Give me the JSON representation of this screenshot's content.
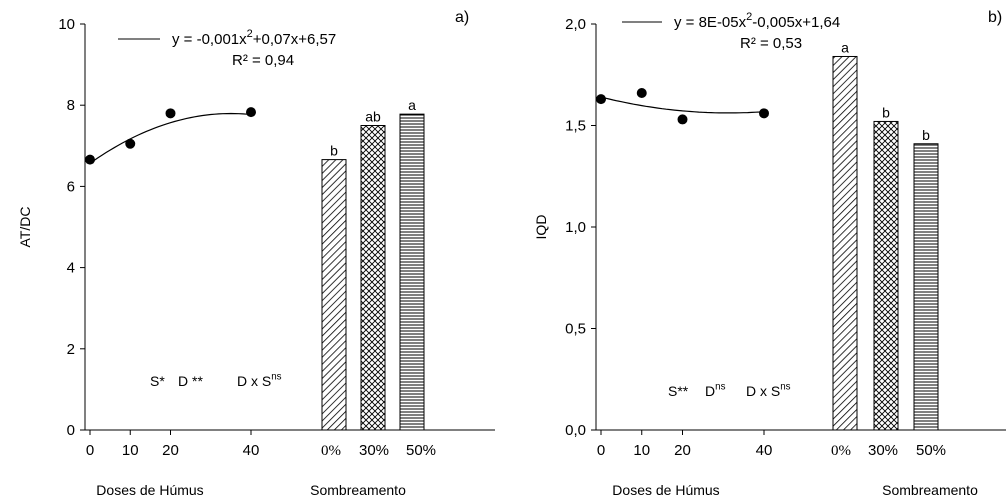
{
  "chart_data": [
    {
      "type": "scatter",
      "panel_label": "a)",
      "ylabel": "AT/DC",
      "ylim": [
        0,
        10
      ],
      "yticks": [
        "0",
        "2",
        "4",
        "6",
        "8",
        "10"
      ],
      "xlabel_doses": "Doses de Húmus",
      "xlabel_shade": "Sombreamento",
      "x_ticks_doses": [
        "0",
        "10",
        "20",
        "40"
      ],
      "points": [
        {
          "x": 0,
          "y": 6.66
        },
        {
          "x": 10,
          "y": 7.05
        },
        {
          "x": 20,
          "y": 7.8
        },
        {
          "x": 40,
          "y": 7.83
        }
      ],
      "fit": {
        "a": -0.001,
        "b": 0.07,
        "c": 6.57
      },
      "equation_main": "y = -0,001x",
      "equation_sup": "2",
      "equation_rest": "+0,07x+6,57",
      "r2": "R² = 0,94",
      "bars": [
        {
          "category": "0%",
          "value": 6.66,
          "letter": "b"
        },
        {
          "category": "30%",
          "value": 7.5,
          "letter": "ab"
        },
        {
          "category": "50%",
          "value": 7.78,
          "letter": "a"
        }
      ],
      "sig": {
        "s_label": "S*",
        "d_label": "D **",
        "dxs_label": "D x S",
        "dxs_sup": "ns"
      }
    },
    {
      "type": "scatter",
      "panel_label": "b)",
      "ylabel": "IQD",
      "ylim": [
        0,
        2
      ],
      "yticks": [
        "0,0",
        "0,5",
        "1,0",
        "1,5",
        "2,0"
      ],
      "xlabel_doses": "Doses de Húmus",
      "xlabel_shade": "Sombreamento",
      "x_ticks_doses": [
        "0",
        "10",
        "20",
        "40"
      ],
      "points": [
        {
          "x": 0,
          "y": 1.63
        },
        {
          "x": 10,
          "y": 1.66
        },
        {
          "x": 20,
          "y": 1.53
        },
        {
          "x": 40,
          "y": 1.56
        }
      ],
      "fit": {
        "a": 8e-05,
        "b": -0.005,
        "c": 1.64
      },
      "equation_main": "y = 8E-05x",
      "equation_sup": "2",
      "equation_rest": "-0,005x+1,64",
      "r2": "R² = 0,53",
      "bars": [
        {
          "category": "0%",
          "value": 1.84,
          "letter": "a"
        },
        {
          "category": "30%",
          "value": 1.52,
          "letter": "b"
        },
        {
          "category": "50%",
          "value": 1.41,
          "letter": "b"
        }
      ],
      "sig": {
        "s_label": "S**",
        "d_label": "D",
        "d_sup": "ns",
        "dxs_label": "D x S",
        "dxs_sup": "ns"
      }
    }
  ]
}
